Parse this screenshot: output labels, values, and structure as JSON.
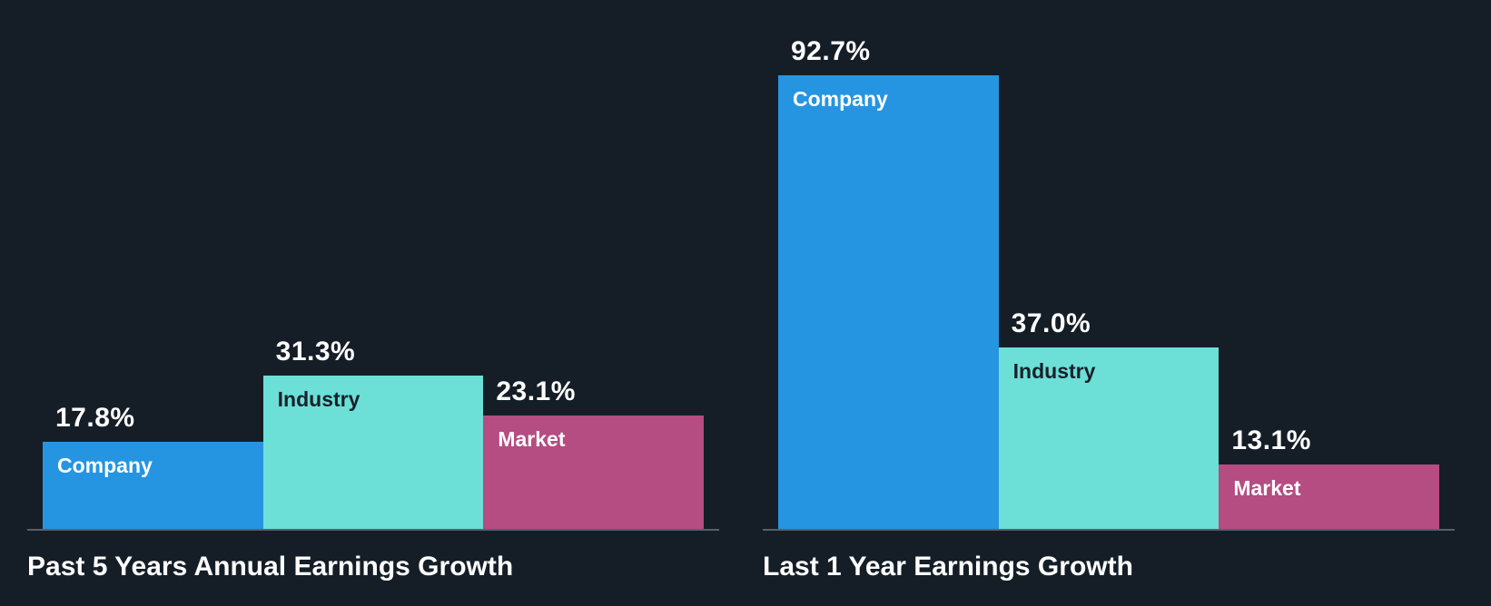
{
  "colors": {
    "background": "#151e27",
    "company": "#2595e1",
    "industry": "#6ce0d6",
    "market": "#b54c82",
    "axis": "#55606c",
    "label_light": "#ffffff",
    "label_dark": "#17202b"
  },
  "chart_data": [
    {
      "type": "bar",
      "title": "Past 5 Years Annual Earnings Growth",
      "categories": [
        "Company",
        "Industry",
        "Market"
      ],
      "values": [
        17.8,
        31.3,
        23.1
      ],
      "value_labels": [
        "17.8%",
        "31.3%",
        "23.1%"
      ],
      "ylim": [
        0,
        100
      ],
      "grid": false,
      "legend": "none",
      "bar_colors": [
        "company",
        "industry",
        "market"
      ],
      "category_label_colors": [
        "label_light",
        "label_dark",
        "label_light"
      ]
    },
    {
      "type": "bar",
      "title": "Last 1 Year Earnings Growth",
      "categories": [
        "Company",
        "Industry",
        "Market"
      ],
      "values": [
        92.7,
        37.0,
        13.1
      ],
      "value_labels": [
        "92.7%",
        "37.0%",
        "13.1%"
      ],
      "ylim": [
        0,
        100
      ],
      "grid": false,
      "legend": "none",
      "bar_colors": [
        "company",
        "industry",
        "market"
      ],
      "category_label_colors": [
        "label_light",
        "label_dark",
        "label_light"
      ]
    }
  ]
}
